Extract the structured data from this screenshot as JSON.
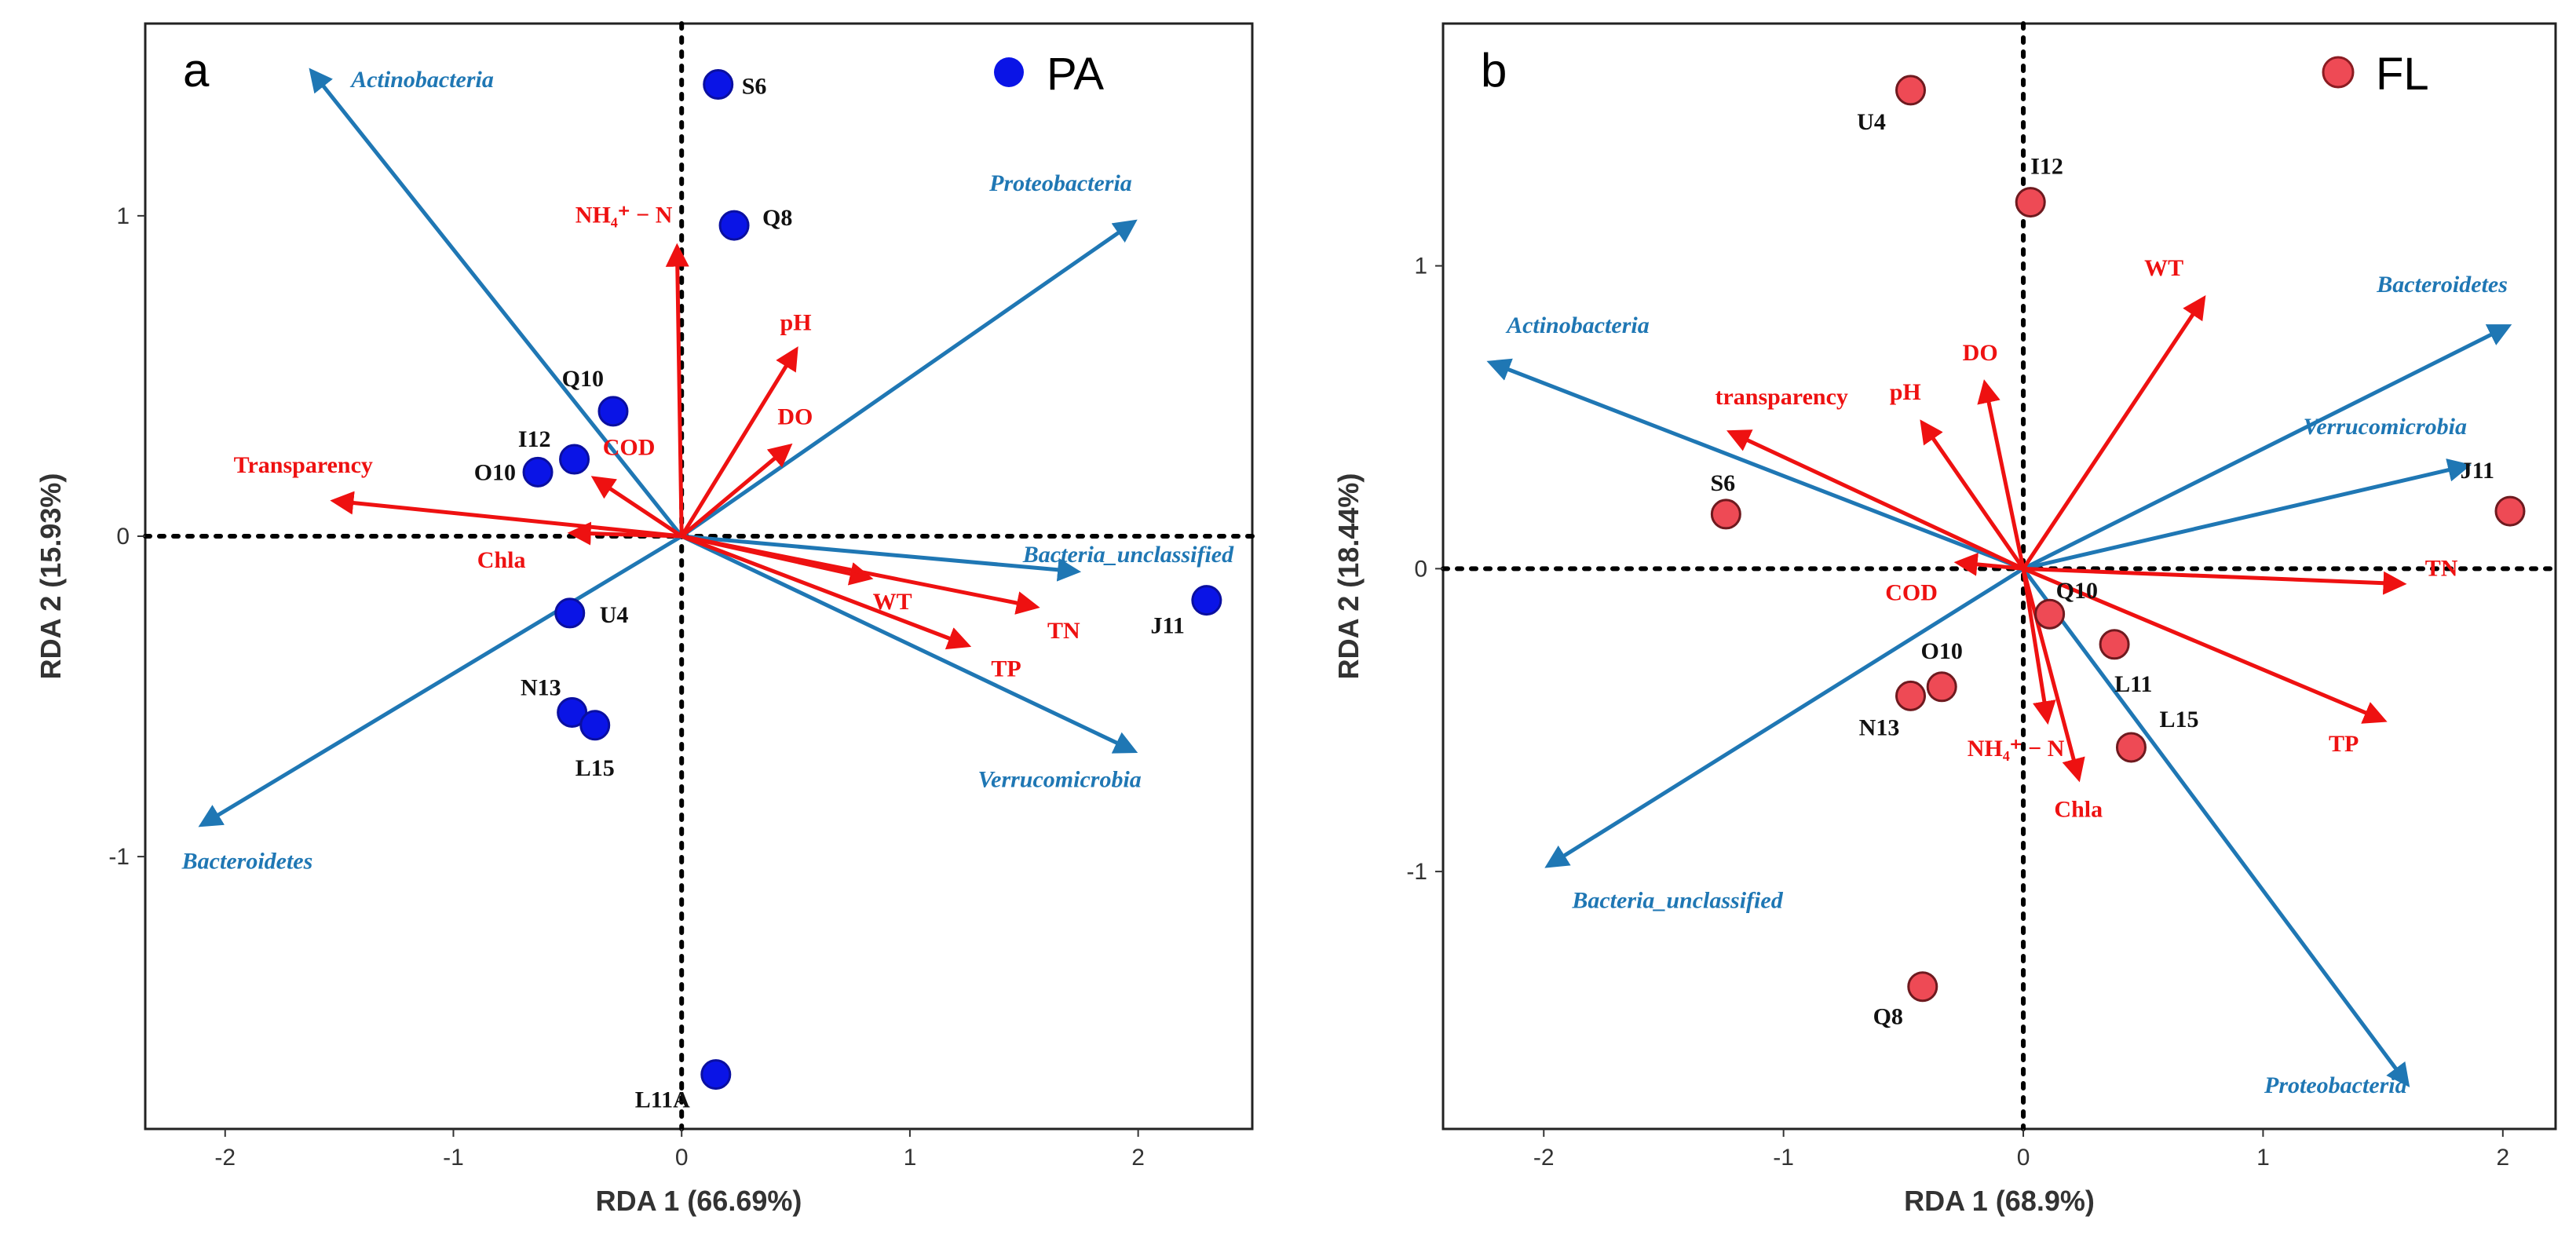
{
  "chart_data": [
    {
      "type": "scatter",
      "panel_label": "a",
      "legend": {
        "label": "PA",
        "color": "#0a14e6",
        "placement": "top-right"
      },
      "xlabel": "RDA 1 (66.69%)",
      "ylabel": "RDA 2 (15.93%)",
      "xlim": [
        -2.35,
        2.5
      ],
      "ylim": [
        -1.85,
        1.6
      ],
      "xticks": [
        {
          "v": -2,
          "label": "-2"
        },
        {
          "v": -1,
          "label": "-1"
        },
        {
          "v": 0,
          "label": "0"
        },
        {
          "v": 1,
          "label": "1"
        },
        {
          "v": 2,
          "label": "2"
        }
      ],
      "yticks": [
        {
          "v": -1,
          "label": "-1"
        },
        {
          "v": 0,
          "label": "0"
        },
        {
          "v": 1,
          "label": "1"
        }
      ],
      "grid": false,
      "point_color": "#0a14e6",
      "env_color": "#ee1111",
      "taxa_color": "#1f77b4",
      "sites": [
        {
          "name": "S6",
          "x": 0.16,
          "y": 1.41
        },
        {
          "name": "Q8",
          "x": 0.23,
          "y": 0.97
        },
        {
          "name": "Q10",
          "x": -0.3,
          "y": 0.39
        },
        {
          "name": "I12",
          "x": -0.47,
          "y": 0.24
        },
        {
          "name": "O10",
          "x": -0.63,
          "y": 0.2
        },
        {
          "name": "U4",
          "x": -0.49,
          "y": -0.24
        },
        {
          "name": "N13",
          "x": -0.48,
          "y": -0.55
        },
        {
          "name": "L15",
          "x": -0.38,
          "y": -0.59
        },
        {
          "name": "J11",
          "x": 2.3,
          "y": -0.2
        },
        {
          "name": "L11A",
          "x": 0.15,
          "y": -1.68
        }
      ],
      "environment": [
        {
          "name": "NH₄⁺ − N",
          "x": -0.02,
          "y": 0.9
        },
        {
          "name": "pH",
          "x": 0.5,
          "y": 0.58
        },
        {
          "name": "DO",
          "x": 0.47,
          "y": 0.28
        },
        {
          "name": "COD",
          "x": -0.38,
          "y": 0.18
        },
        {
          "name": "Transparency",
          "x": -1.52,
          "y": 0.11
        },
        {
          "name": "Chla",
          "x": -0.48,
          "y": 0.01
        },
        {
          "name": "WT",
          "x": 0.82,
          "y": -0.13
        },
        {
          "name": "TN",
          "x": 1.55,
          "y": -0.22
        },
        {
          "name": "TP",
          "x": 1.25,
          "y": -0.34
        }
      ],
      "taxa": [
        {
          "name": "Actinobacteria",
          "x": -1.62,
          "y": 1.45
        },
        {
          "name": "Proteobacteria",
          "x": 1.98,
          "y": 0.98
        },
        {
          "name": "Bacteria_unclassified",
          "x": 1.73,
          "y": -0.11
        },
        {
          "name": "Verrucomicrobia",
          "x": 1.98,
          "y": -0.67
        },
        {
          "name": "Bacteroidetes",
          "x": -2.1,
          "y": -0.9
        }
      ]
    },
    {
      "type": "scatter",
      "panel_label": "b",
      "legend": {
        "label": "FL",
        "color": "#ee4a55",
        "placement": "top-right"
      },
      "xlabel": "RDA 1 (68.9%)",
      "ylabel": "RDA 2 (18.44%)",
      "xlim": [
        -2.42,
        2.22
      ],
      "ylim": [
        -1.85,
        1.8
      ],
      "xticks": [
        {
          "v": -2,
          "label": "-2"
        },
        {
          "v": -1,
          "label": "-1"
        },
        {
          "v": 0,
          "label": "0"
        },
        {
          "v": 1,
          "label": "1"
        },
        {
          "v": 2,
          "label": "2"
        }
      ],
      "yticks": [
        {
          "v": -1,
          "label": "-1"
        },
        {
          "v": 0,
          "label": "0"
        },
        {
          "v": 1,
          "label": "1"
        }
      ],
      "grid": false,
      "point_color": "#ee4a55",
      "env_color": "#ee1111",
      "taxa_color": "#1f77b4",
      "sites": [
        {
          "name": "U4",
          "x": -0.47,
          "y": 1.58
        },
        {
          "name": "I12",
          "x": 0.03,
          "y": 1.21
        },
        {
          "name": "S6",
          "x": -1.24,
          "y": 0.18
        },
        {
          "name": "J11",
          "x": 2.03,
          "y": 0.19
        },
        {
          "name": "Q10",
          "x": 0.11,
          "y": -0.15
        },
        {
          "name": "L11",
          "x": 0.38,
          "y": -0.25
        },
        {
          "name": "O10",
          "x": -0.34,
          "y": -0.39
        },
        {
          "name": "N13",
          "x": -0.47,
          "y": -0.42
        },
        {
          "name": "L15",
          "x": 0.45,
          "y": -0.59
        },
        {
          "name": "Q8",
          "x": -0.42,
          "y": -1.38
        }
      ],
      "environment": [
        {
          "name": "WT",
          "x": 0.75,
          "y": 0.89
        },
        {
          "name": "DO",
          "x": -0.16,
          "y": 0.61
        },
        {
          "name": "pH",
          "x": -0.42,
          "y": 0.48
        },
        {
          "name": "transparency",
          "x": -1.22,
          "y": 0.45
        },
        {
          "name": "COD",
          "x": -0.27,
          "y": 0.02
        },
        {
          "name": "TN",
          "x": 1.58,
          "y": -0.05
        },
        {
          "name": "TP",
          "x": 1.5,
          "y": -0.5
        },
        {
          "name": "NH₄⁺ − N",
          "x": 0.1,
          "y": -0.5
        },
        {
          "name": "Chla",
          "x": 0.23,
          "y": -0.69
        }
      ],
      "taxa": [
        {
          "name": "Actinobacteria",
          "x": -2.22,
          "y": 0.68
        },
        {
          "name": "Bacteroidetes",
          "x": 2.02,
          "y": 0.8
        },
        {
          "name": "Verrucomicrobia",
          "x": 1.85,
          "y": 0.34
        },
        {
          "name": "Bacteria_unclassified",
          "x": -1.98,
          "y": -0.98
        },
        {
          "name": "Proteobacteria",
          "x": 1.6,
          "y": -1.7
        }
      ]
    }
  ]
}
